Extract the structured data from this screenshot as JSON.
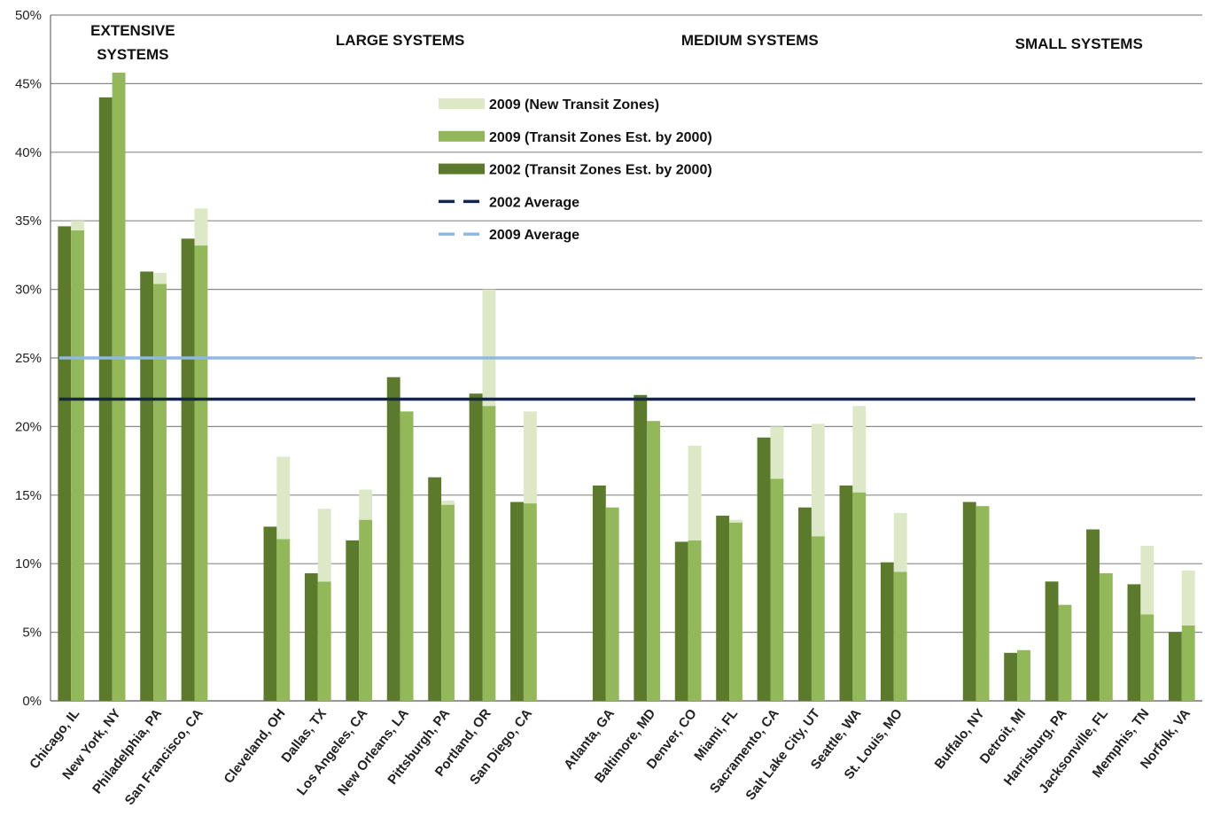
{
  "chart_data": {
    "type": "bar",
    "stacked_new_zones_on_2009": true,
    "ylim": [
      0,
      50
    ],
    "y_ticks": [
      "0%",
      "5%",
      "10%",
      "15%",
      "20%",
      "25%",
      "30%",
      "35%",
      "40%",
      "45%",
      "50%"
    ],
    "groups": [
      {
        "label": "EXTENSIVE SYSTEMS",
        "label_lines": [
          "EXTENSIVE",
          "SYSTEMS"
        ],
        "categories": [
          "Chicago, IL",
          "New York, NY",
          "Philadelphia, PA",
          "San Francisco, CA"
        ]
      },
      {
        "label": "LARGE SYSTEMS",
        "label_lines": [
          "LARGE SYSTEMS"
        ],
        "categories": [
          "Cleveland, OH",
          "Dallas, TX",
          "Los Angeles, CA",
          "New Orleans, LA",
          "Pittsburgh, PA",
          "Portland, OR",
          "San Diego, CA"
        ]
      },
      {
        "label": "MEDIUM SYSTEMS",
        "label_lines": [
          "MEDIUM SYSTEMS"
        ],
        "categories": [
          "Atlanta, GA",
          "Baltimore, MD",
          "Denver, CO",
          "Miami, FL",
          "Sacramento, CA",
          "Salt Lake City, UT",
          "Seattle, WA",
          "St. Louis, MO"
        ]
      },
      {
        "label": "SMALL SYSTEMS",
        "label_lines": [
          "SMALL SYSTEMS"
        ],
        "categories": [
          "Buffalo, NY",
          "Detroit, MI",
          "Harrisburg, PA",
          "Jacksonville, FL",
          "Memphis, TN",
          "Norfolk, VA"
        ]
      }
    ],
    "categories": [
      "Chicago, IL",
      "New York, NY",
      "Philadelphia, PA",
      "San Francisco, CA",
      "Cleveland, OH",
      "Dallas, TX",
      "Los Angeles, CA",
      "New Orleans, LA",
      "Pittsburgh, PA",
      "Portland, OR",
      "San Diego, CA",
      "Atlanta, GA",
      "Baltimore, MD",
      "Denver, CO",
      "Miami, FL",
      "Sacramento, CA",
      "Salt Lake City, UT",
      "Seattle, WA",
      "St. Louis, MO",
      "Buffalo, NY",
      "Detroit, MI",
      "Harrisburg, PA",
      "Jacksonville, FL",
      "Memphis, TN",
      "Norfolk, VA"
    ],
    "series": [
      {
        "name": "2009 (New Transit Zones)",
        "color": "#dde8c6",
        "values": [
          0.7,
          0,
          0.8,
          2.7,
          6.0,
          5.3,
          2.2,
          0,
          0.3,
          8.5,
          6.7,
          0,
          0,
          6.9,
          0.2,
          3.8,
          8.2,
          6.3,
          4.3,
          0,
          0,
          0,
          0,
          5.0,
          4.0
        ]
      },
      {
        "name": "2009 (Transit Zones Est. by 2000)",
        "color": "#93b85a",
        "values": [
          34.3,
          45.8,
          30.4,
          33.2,
          11.8,
          8.7,
          13.2,
          21.1,
          14.3,
          21.5,
          14.4,
          14.1,
          20.4,
          11.7,
          13.0,
          16.2,
          12.0,
          15.2,
          9.4,
          14.2,
          3.7,
          7.0,
          9.3,
          6.3,
          5.5
        ]
      },
      {
        "name": "2002 (Transit Zones Est. by 2000)",
        "color": "#5b7a2c",
        "values": [
          34.6,
          44.0,
          31.3,
          33.7,
          12.7,
          9.3,
          11.7,
          23.6,
          16.3,
          22.4,
          14.5,
          15.7,
          22.3,
          11.6,
          13.5,
          19.2,
          14.1,
          15.7,
          10.1,
          14.5,
          3.5,
          8.7,
          12.5,
          8.5,
          5.0
        ]
      }
    ],
    "averages": [
      {
        "name": "2002 Average",
        "value": 22.0,
        "color": "#14254f"
      },
      {
        "name": "2009 Average",
        "value": 25.0,
        "color": "#8fb8e3"
      }
    ],
    "legend": {
      "position": "top-center"
    },
    "grid": true,
    "xlabel": "",
    "ylabel": ""
  }
}
